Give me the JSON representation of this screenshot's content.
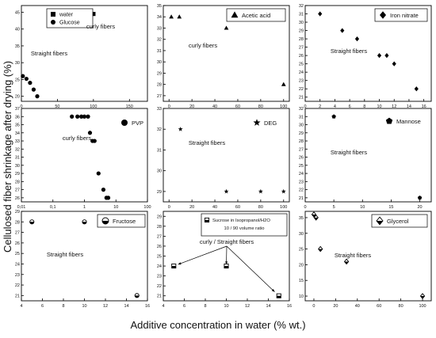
{
  "figure": {
    "ylabel": "Cellulosed fiber shrinkage after drying (%)",
    "xlabel": "Additive concentration in water (% wt.)"
  },
  "chart_data": [
    {
      "type": "scatter",
      "xlim": [
        0,
        175
      ],
      "ylim": [
        18.5,
        47
      ],
      "xticks": [
        0,
        50,
        100,
        150
      ],
      "xticklabels": [
        "0",
        "50",
        "100",
        "150"
      ],
      "yticks": [
        20,
        25,
        30,
        35,
        40,
        45
      ],
      "series": [
        {
          "name": "water",
          "marker": "square",
          "x": [
            100
          ],
          "y": [
            44.5
          ]
        },
        {
          "name": "Glucose",
          "marker": "circle",
          "x": [
            2,
            7,
            12,
            17,
            22
          ],
          "y": [
            26,
            25.2,
            24,
            22,
            20
          ]
        }
      ],
      "annotations": [
        {
          "text": "curly fibers"
        },
        {
          "text": "Straight fibers"
        }
      ]
    },
    {
      "type": "scatter",
      "xlim": [
        -5,
        105
      ],
      "ylim": [
        26.5,
        35
      ],
      "xticks": [
        0,
        20,
        40,
        60,
        80,
        100
      ],
      "yticks": [
        27,
        28,
        29,
        30,
        31,
        32,
        33,
        34,
        35
      ],
      "series": [
        {
          "name": "Acetic acid",
          "marker": "triangle",
          "x": [
            2,
            9,
            50,
            100
          ],
          "y": [
            34,
            34,
            33,
            28
          ]
        }
      ],
      "annotations": [
        {
          "text": "curly fibers"
        }
      ]
    },
    {
      "type": "scatter",
      "xlim": [
        0,
        17
      ],
      "ylim": [
        20.5,
        32
      ],
      "xticks": [
        0,
        2,
        4,
        6,
        8,
        10,
        12,
        14,
        16
      ],
      "yticks": [
        21,
        22,
        23,
        24,
        25,
        26,
        27,
        28,
        29,
        30,
        31,
        32
      ],
      "series": [
        {
          "name": "Iron nitrate",
          "marker": "diamond",
          "x": [
            2,
            5,
            7,
            10,
            11,
            12,
            15
          ],
          "y": [
            31,
            29,
            28,
            26,
            26,
            25,
            22
          ]
        }
      ],
      "annotations": [
        {
          "text": "Straight fibers"
        }
      ]
    },
    {
      "type": "scatter",
      "xscale": "log",
      "xlim": [
        0.01,
        100
      ],
      "ylim": [
        25.5,
        37
      ],
      "xticks": [
        0.01,
        0.1,
        1,
        10,
        100
      ],
      "xticklabels": [
        "0,01",
        "0,1",
        "1",
        "10",
        "100"
      ],
      "yticks": [
        26,
        27,
        28,
        29,
        30,
        31,
        32,
        33,
        34,
        35,
        36,
        37
      ],
      "series": [
        {
          "name": "PVP",
          "marker": "circle",
          "x": [
            0.4,
            0.6,
            0.8,
            1,
            1.3,
            1.5,
            1.8,
            2.1,
            2.8,
            4,
            5,
            5.7
          ],
          "y": [
            36,
            36,
            36,
            36,
            36,
            34,
            33,
            33,
            29,
            27,
            26,
            26
          ]
        }
      ],
      "annotations": [
        {
          "text": "curly fibers"
        }
      ]
    },
    {
      "type": "scatter",
      "xlim": [
        -5,
        105
      ],
      "ylim": [
        28.5,
        33
      ],
      "xticks": [
        0,
        20,
        40,
        60,
        80,
        100
      ],
      "yticks": [
        29,
        30,
        31,
        32,
        33
      ],
      "series": [
        {
          "name": "DEG",
          "marker": "star",
          "x": [
            10,
            50,
            80,
            100
          ],
          "y": [
            32,
            29,
            29,
            29
          ]
        }
      ],
      "annotations": [
        {
          "text": "Straight fibers"
        }
      ]
    },
    {
      "type": "scatter",
      "xlim": [
        0,
        22
      ],
      "ylim": [
        20.5,
        32
      ],
      "xticks": [
        0,
        5,
        10,
        15,
        20
      ],
      "yticks": [
        21,
        22,
        23,
        24,
        25,
        26,
        27,
        28,
        29,
        30,
        31,
        32
      ],
      "series": [
        {
          "name": "Mannose",
          "marker": "pentagon",
          "x": [
            5,
            20
          ],
          "y": [
            31,
            21
          ]
        }
      ],
      "annotations": [
        {
          "text": "Straight fibers"
        }
      ]
    },
    {
      "type": "scatter",
      "xlim": [
        4,
        16
      ],
      "ylim": [
        20.5,
        29
      ],
      "xticks": [
        4,
        6,
        8,
        10,
        12,
        14,
        16
      ],
      "yticks": [
        21,
        22,
        23,
        24,
        25,
        26,
        27,
        28,
        29
      ],
      "series": [
        {
          "name": "Fructose",
          "marker": "half-circle",
          "x": [
            5,
            10,
            15
          ],
          "y": [
            28,
            28,
            21
          ]
        }
      ],
      "annotations": [
        {
          "text": "Straight fibers"
        }
      ]
    },
    {
      "type": "scatter",
      "xlim": [
        4,
        16
      ],
      "ylim": [
        20.5,
        29.5
      ],
      "xticks": [
        4,
        6,
        8,
        10,
        12,
        14,
        16
      ],
      "yticks": [
        21,
        22,
        23,
        24,
        25,
        26,
        27,
        28,
        29
      ],
      "series": [
        {
          "name": "Sucrose in Isopropanol/H2O",
          "marker": "half-square",
          "x": [
            5,
            10,
            15
          ],
          "y": [
            24,
            24,
            21
          ]
        }
      ],
      "legend_extra": "10 / 90 volume ratio",
      "annotations": [
        {
          "text": "curly / Straight fibers"
        }
      ]
    },
    {
      "type": "scatter",
      "xlim": [
        -8,
        108
      ],
      "ylim": [
        8.5,
        37
      ],
      "xticks": [
        0,
        20,
        40,
        60,
        80,
        100
      ],
      "yticks": [
        10,
        15,
        20,
        25,
        30,
        35
      ],
      "series": [
        {
          "name": "Glycerol",
          "marker": "half-diamond",
          "x": [
            0,
            2,
            6,
            30,
            100
          ],
          "y": [
            36,
            35,
            25,
            21,
            10
          ]
        }
      ],
      "annotations": [
        {
          "text": "Straight fibers"
        }
      ]
    }
  ]
}
